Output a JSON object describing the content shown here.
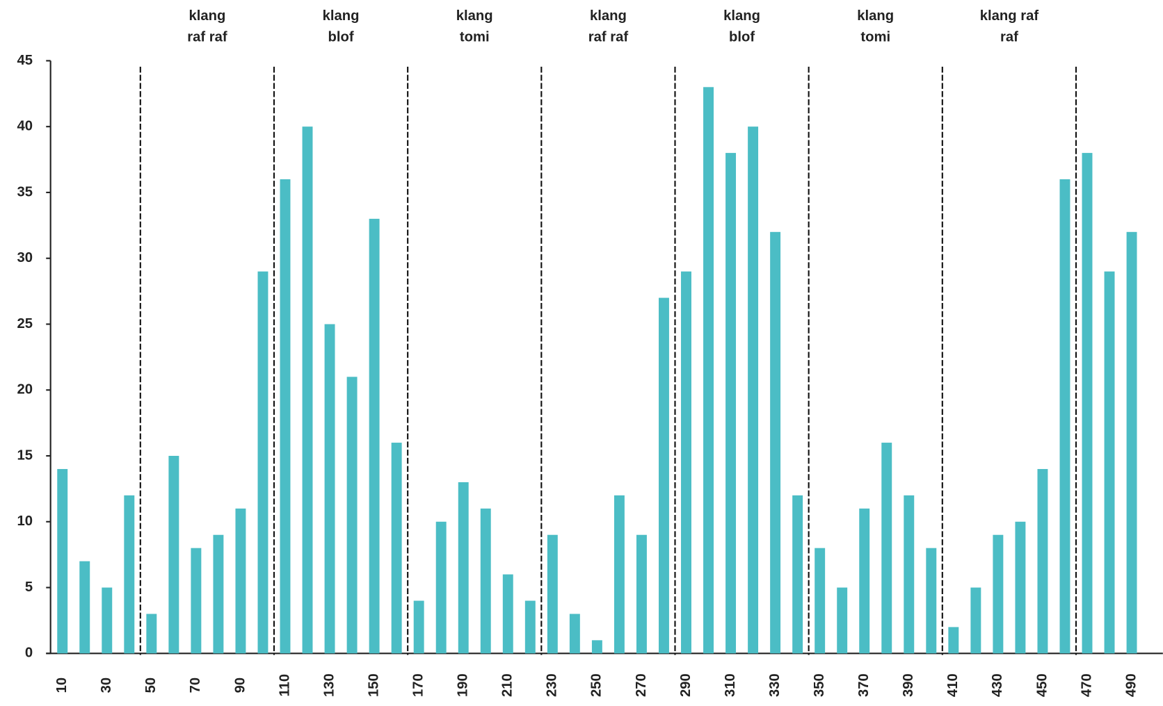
{
  "chart_data": {
    "type": "bar",
    "categories": [
      "10",
      null,
      "30",
      null,
      "50",
      null,
      "70",
      null,
      "90",
      null,
      "110",
      null,
      "130",
      null,
      "150",
      null,
      "170",
      null,
      "190",
      null,
      "210",
      null,
      "230",
      null,
      "250",
      null,
      "270",
      null,
      "290",
      null,
      "310",
      null,
      "330",
      null,
      "350",
      null,
      "370",
      null,
      "390",
      null,
      "410",
      null,
      "430",
      null,
      "450",
      null,
      "470",
      null,
      "490"
    ],
    "values": [
      14,
      7,
      5,
      12,
      3,
      15,
      8,
      9,
      11,
      29,
      36,
      40,
      25,
      21,
      33,
      16,
      4,
      10,
      13,
      11,
      6,
      4,
      9,
      3,
      1,
      12,
      9,
      27,
      29,
      43,
      38,
      40,
      32,
      12,
      8,
      5,
      11,
      16,
      12,
      8,
      2,
      5,
      9,
      10,
      14,
      36,
      38,
      29,
      32
    ],
    "color": "#4bbdc5",
    "ylim": [
      0,
      45
    ],
    "yticks": [
      0,
      5,
      10,
      15,
      20,
      25,
      30,
      35,
      40,
      45
    ],
    "groups": [
      {
        "size": 4
      },
      {
        "label": [
          "klang",
          "raf raf"
        ],
        "size": 6
      },
      {
        "label": [
          "klang",
          "blof"
        ],
        "size": 6
      },
      {
        "label": [
          "klang",
          "tomi"
        ],
        "size": 6
      },
      {
        "label": [
          "klang",
          "raf raf"
        ],
        "size": 6
      },
      {
        "label": [
          "klang",
          "blof"
        ],
        "size": 6
      },
      {
        "label": [
          "klang",
          "tomi"
        ],
        "size": 6
      },
      {
        "label": [
          "klang raf",
          "raf"
        ],
        "size": 6
      },
      {
        "size": 3
      }
    ]
  }
}
